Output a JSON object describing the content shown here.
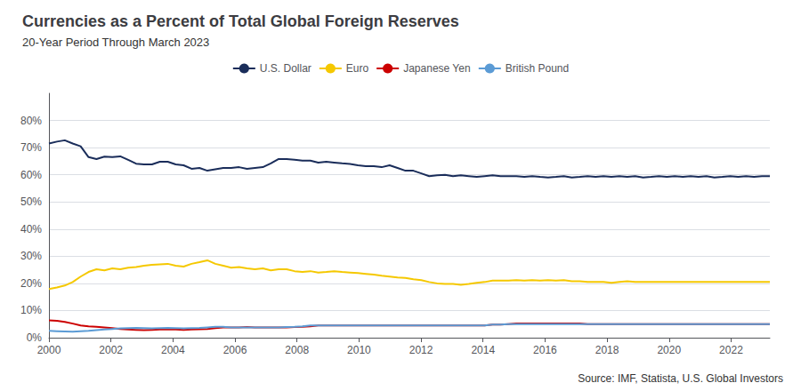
{
  "chart_data": {
    "type": "line",
    "title": "Currencies as a Percent of Total Global Foreign Reserves",
    "subtitle": "20-Year Period Through March 2023",
    "annotations": [
      "Source: IMF, Statista, U.S. Global Investors"
    ],
    "x": [
      2000,
      2000.255495,
      2000.510989,
      2000.766484,
      2001.021978,
      2001.277473,
      2001.532967,
      2001.788462,
      2002.043956,
      2002.299451,
      2002.554945,
      2002.81044,
      2003.065934,
      2003.321429,
      2003.576923,
      2003.832418,
      2004.087912,
      2004.343407,
      2004.598901,
      2004.854396,
      2005.10989,
      2005.365385,
      2005.620879,
      2005.876374,
      2006.131868,
      2006.387363,
      2006.642857,
      2006.898352,
      2007.153846,
      2007.409341,
      2007.664835,
      2007.92033,
      2008.175824,
      2008.431319,
      2008.686813,
      2008.942308,
      2009.197802,
      2009.453297,
      2009.708791,
      2009.964286,
      2010.21978,
      2010.475275,
      2010.730769,
      2010.986264,
      2011.241758,
      2011.497253,
      2011.752747,
      2012.008242,
      2012.263736,
      2012.519231,
      2012.774725,
      2013.03022,
      2013.285714,
      2013.541209,
      2013.796703,
      2014.052198,
      2014.307692,
      2014.563187,
      2014.818681,
      2015.074176,
      2015.32967,
      2015.585165,
      2015.840659,
      2016.096154,
      2016.351648,
      2016.607143,
      2016.862637,
      2017.118132,
      2017.373626,
      2017.629121,
      2017.884615,
      2018.14011,
      2018.395604,
      2018.651099,
      2018.906593,
      2019.162088,
      2019.417582,
      2019.673077,
      2019.928571,
      2020.184066,
      2020.43956,
      2020.695055,
      2020.950549,
      2021.206044,
      2021.461538,
      2021.717033,
      2021.972527,
      2022.228022,
      2022.483516,
      2022.739011,
      2022.994505,
      2023.25
    ],
    "series": [
      {
        "name": "U.S. Dollar",
        "color": "#1a2d5a",
        "values": [
          71.5,
          72.2,
          72.7,
          71.5,
          70.5,
          66.5,
          65.8,
          66.7,
          66.5,
          66.8,
          65.5,
          64.1,
          63.8,
          63.8,
          64.8,
          64.8,
          63.8,
          63.5,
          62.2,
          62.5,
          61.5,
          62.0,
          62.5,
          62.5,
          62.8,
          62.2,
          62.5,
          62.8,
          64.2,
          65.8,
          65.8,
          65.5,
          65.2,
          65.2,
          64.5,
          64.8,
          64.5,
          64.2,
          64.0,
          63.5,
          63.2,
          63.2,
          62.8,
          63.5,
          62.5,
          61.5,
          61.5,
          60.5,
          59.5,
          59.8,
          60.0,
          59.5,
          59.8,
          59.5,
          59.2,
          59.5,
          59.8,
          59.5,
          59.5,
          59.5,
          59.2,
          59.5,
          59.2,
          59.0,
          59.2,
          59.5,
          59.0,
          59.2,
          59.5,
          59.2,
          59.5,
          59.2,
          59.5,
          59.2,
          59.5,
          59.0,
          59.2,
          59.5,
          59.2,
          59.5,
          59.2,
          59.5,
          59.2,
          59.5,
          59.0,
          59.2,
          59.5,
          59.2,
          59.5,
          59.2,
          59.5,
          59.5
        ]
      },
      {
        "name": "Euro",
        "color": "#f5c800",
        "values": [
          17.9,
          18.5,
          19.2,
          20.5,
          22.5,
          24.2,
          25.2,
          24.8,
          25.5,
          25.2,
          25.8,
          26.0,
          26.5,
          26.8,
          27.0,
          27.2,
          26.5,
          26.2,
          27.2,
          27.8,
          28.5,
          27.2,
          26.5,
          25.8,
          26.0,
          25.5,
          25.2,
          25.5,
          24.8,
          25.2,
          25.2,
          24.5,
          24.2,
          24.5,
          24.0,
          24.2,
          24.5,
          24.2,
          24.0,
          23.8,
          23.5,
          23.2,
          22.8,
          22.5,
          22.2,
          22.0,
          21.5,
          21.2,
          20.5,
          20.0,
          19.8,
          19.8,
          19.5,
          19.8,
          20.2,
          20.5,
          21.0,
          21.0,
          21.0,
          21.2,
          21.0,
          21.2,
          21.0,
          21.2,
          21.0,
          21.2,
          20.8,
          20.8,
          20.5,
          20.5,
          20.5,
          20.2,
          20.5,
          20.8,
          20.5,
          20.5,
          20.5,
          20.5,
          20.5,
          20.5,
          20.5,
          20.5,
          20.5,
          20.5,
          20.5,
          20.5,
          20.5,
          20.5,
          20.5,
          20.5,
          20.5,
          20.5
        ]
      },
      {
        "name": "Japanese Yen",
        "color": "#cc0000",
        "values": [
          6.4,
          6.2,
          5.8,
          5.2,
          4.5,
          4.2,
          4.0,
          3.8,
          3.5,
          3.2,
          3.0,
          2.9,
          2.8,
          2.9,
          3.0,
          3.1,
          3.0,
          2.9,
          3.0,
          3.1,
          3.2,
          3.5,
          3.8,
          3.8,
          3.8,
          3.9,
          3.8,
          3.8,
          3.8,
          3.8,
          3.8,
          3.9,
          4.0,
          4.2,
          4.5,
          4.5,
          4.5,
          4.5,
          4.5,
          4.5,
          4.5,
          4.5,
          4.5,
          4.5,
          4.5,
          4.5,
          4.5,
          4.5,
          4.5,
          4.5,
          4.5,
          4.5,
          4.5,
          4.5,
          4.5,
          4.5,
          4.8,
          4.8,
          5.0,
          5.2,
          5.2,
          5.2,
          5.2,
          5.2,
          5.2,
          5.2,
          5.2,
          5.2,
          5.0,
          5.0,
          5.0,
          5.0,
          5.0,
          5.0,
          5.0,
          5.0,
          5.0,
          5.0,
          5.0,
          5.0,
          5.0,
          5.0,
          5.0,
          5.0,
          5.0,
          5.0,
          5.0,
          5.0,
          5.0,
          5.0,
          5.0,
          5.0
        ]
      },
      {
        "name": "British Pound",
        "color": "#5b9bd5",
        "values": [
          2.5,
          2.4,
          2.3,
          2.2,
          2.4,
          2.5,
          2.8,
          3.0,
          3.2,
          3.4,
          3.5,
          3.6,
          3.5,
          3.4,
          3.5,
          3.6,
          3.5,
          3.4,
          3.5,
          3.6,
          3.8,
          4.0,
          4.0,
          3.8,
          3.8,
          3.8,
          3.8,
          3.8,
          3.8,
          3.8,
          3.9,
          4.0,
          4.2,
          4.5,
          4.5,
          4.5,
          4.5,
          4.5,
          4.5,
          4.5,
          4.5,
          4.5,
          4.5,
          4.5,
          4.5,
          4.5,
          4.5,
          4.5,
          4.5,
          4.5,
          4.5,
          4.5,
          4.5,
          4.5,
          4.5,
          4.5,
          4.8,
          4.8,
          5.0,
          5.0,
          5.0,
          5.0,
          5.0,
          5.0,
          5.0,
          5.0,
          5.0,
          5.0,
          5.0,
          5.0,
          5.0,
          5.0,
          5.0,
          5.0,
          5.0,
          5.0,
          5.0,
          5.0,
          5.0,
          5.0,
          5.0,
          5.0,
          5.0,
          5.0,
          5.0,
          5.0,
          5.0,
          5.0,
          5.0,
          5.0,
          5.0,
          5.0
        ]
      }
    ],
    "xlim": [
      2000,
      2023.25
    ],
    "xticks": [
      2000,
      2002,
      2004,
      2006,
      2008,
      2010,
      2012,
      2014,
      2016,
      2018,
      2020,
      2022
    ],
    "ylim": [
      0,
      90
    ],
    "yticks": [
      {
        "value": 0,
        "label": "0%"
      },
      {
        "value": 10,
        "label": "10%"
      },
      {
        "value": 20,
        "label": "20%"
      },
      {
        "value": 30,
        "label": "30%"
      },
      {
        "value": 40,
        "label": "40%"
      },
      {
        "value": 50,
        "label": "50%"
      },
      {
        "value": 60,
        "label": "60%"
      },
      {
        "value": 70,
        "label": "70%"
      },
      {
        "value": 80,
        "label": "80%"
      }
    ],
    "grid": "y",
    "legend": "top"
  }
}
